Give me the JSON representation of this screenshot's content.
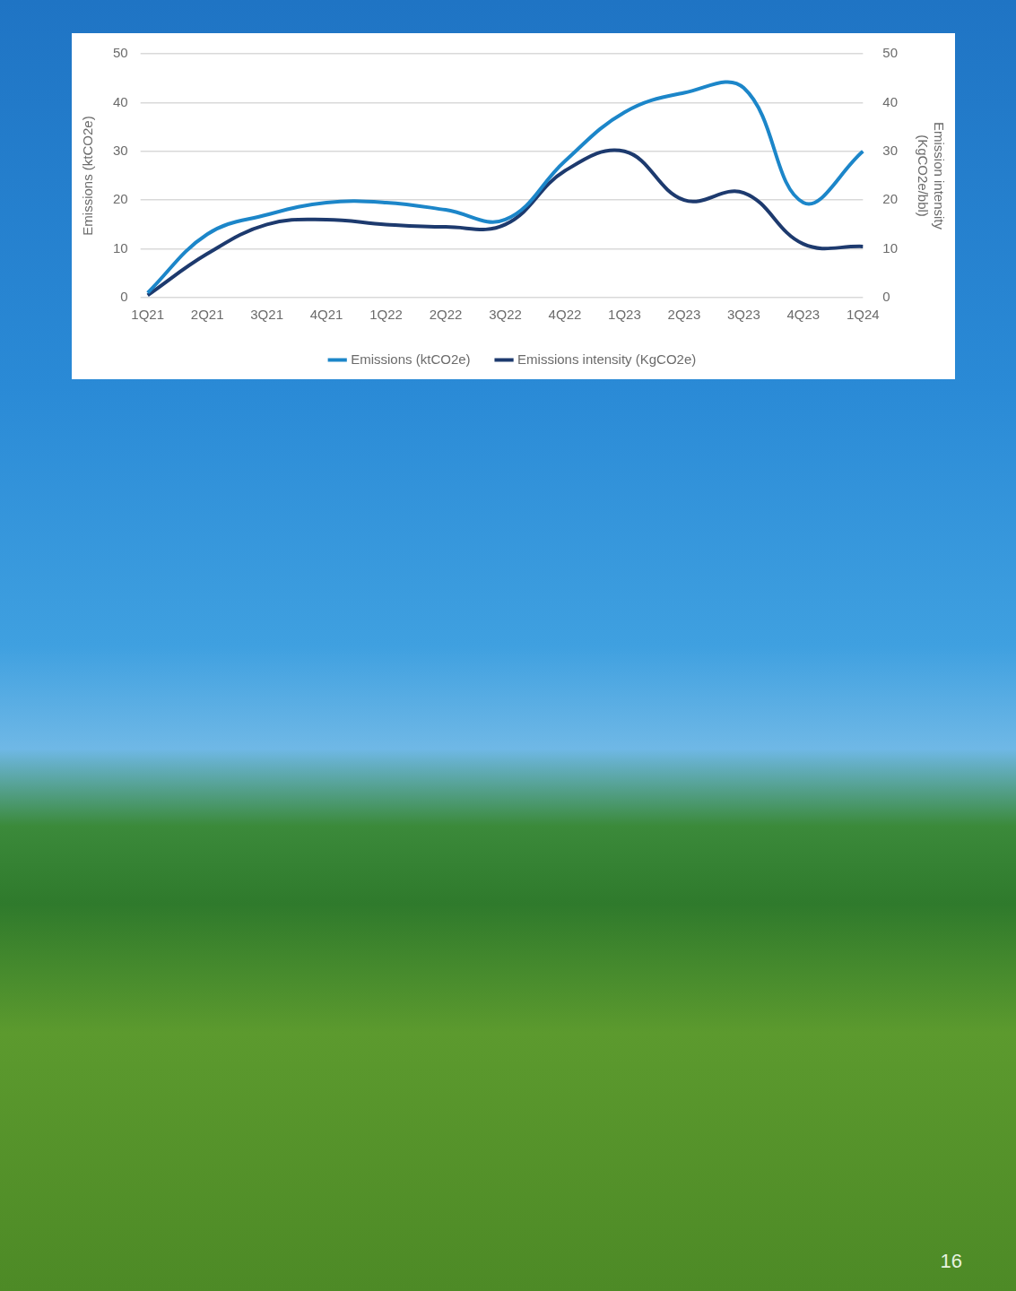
{
  "chart_data": {
    "type": "line",
    "categories": [
      "1Q21",
      "2Q21",
      "3Q21",
      "4Q21",
      "1Q22",
      "2Q22",
      "3Q22",
      "4Q22",
      "1Q23",
      "2Q23",
      "3Q23",
      "4Q23",
      "1Q24"
    ],
    "series": [
      {
        "name": "Emissions (ktCO2e)",
        "color": "#1c86c9",
        "values": [
          1,
          13,
          17,
          19.5,
          19.5,
          18,
          16,
          28,
          38,
          42,
          43,
          19.5,
          30
        ]
      },
      {
        "name": "Emissions intensity (KgCO2e)",
        "color": "#1d3a6e",
        "axis": "y2",
        "values": [
          0.5,
          9,
          15,
          16,
          15,
          14.5,
          15,
          26,
          30,
          20,
          21.5,
          11,
          10.5
        ]
      }
    ],
    "y_label": "Emissions (ktCO2e)",
    "y2_label": "Emission intensity (KgCO2e/bbl)",
    "ylim": [
      0,
      50
    ],
    "yticks": [
      0,
      10,
      20,
      30,
      40,
      50
    ],
    "y2lim": [
      0,
      50
    ],
    "y2ticks": [
      0,
      10,
      20,
      30,
      40,
      50
    ],
    "grid": true,
    "legend": "bottom"
  },
  "page": {
    "number": "16"
  }
}
